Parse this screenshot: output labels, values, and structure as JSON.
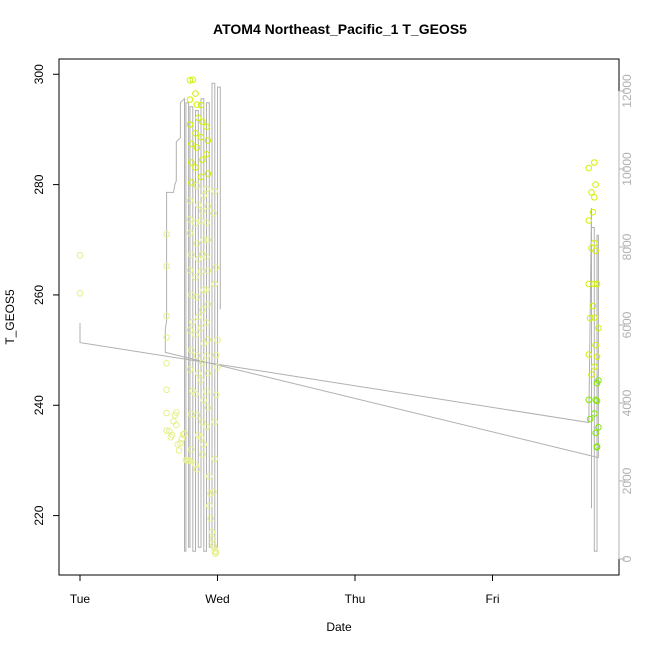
{
  "chart_data": {
    "type": "scatter",
    "title": "ATOM4 Northeast_Pacific_1 T_GEOS5",
    "xlabel": "Date",
    "ylabel": "T_GEOS5",
    "x_ticks": [
      "Tue",
      "Wed",
      "Thu",
      "Fri"
    ],
    "x_range_days": [
      0,
      3.85
    ],
    "ylim": [
      213,
      301
    ],
    "y_ticks": [
      220,
      240,
      260,
      280,
      300
    ],
    "y2lim": [
      -200,
      12500
    ],
    "y2_ticks": [
      0,
      2000,
      4000,
      6000,
      8000,
      10000,
      12000
    ],
    "grid": false,
    "point_color_light": "#e6f08a",
    "point_color_mid": "#d4f000",
    "point_color_green": "#7fe800",
    "line_color": "#b0b0b0",
    "series": [
      {
        "kind": "points",
        "points": [
          [
            0.0,
            267.2
          ],
          [
            0.0,
            260.3
          ],
          [
            0.63,
            271
          ],
          [
            0.63,
            265.2
          ],
          [
            0.63,
            256.2
          ],
          [
            0.63,
            252.3
          ],
          [
            0.63,
            247.6
          ],
          [
            0.63,
            242.8
          ],
          [
            0.63,
            238.6
          ],
          [
            0.63,
            235.4
          ],
          [
            0.65,
            235.3
          ],
          [
            0.66,
            234.2
          ],
          [
            0.67,
            234.6
          ],
          [
            0.68,
            237.1
          ],
          [
            0.69,
            238.2
          ],
          [
            0.7,
            238.7
          ],
          [
            0.7,
            236.4
          ],
          [
            0.71,
            232.9
          ],
          [
            0.72,
            231.8
          ],
          [
            0.73,
            233.1
          ],
          [
            0.74,
            233.9
          ],
          [
            0.75,
            234.7
          ],
          [
            0.76,
            234.9
          ],
          [
            0.77,
            230.1
          ],
          [
            0.78,
            230.0
          ],
          [
            0.79,
            230.0
          ],
          [
            0.8,
            229.9
          ],
          [
            0.8,
            298.9
          ],
          [
            0.82,
            299.0
          ],
          [
            0.8,
            295.4
          ],
          [
            0.8,
            290.9
          ],
          [
            0.81,
            287.4
          ],
          [
            0.81,
            284.0
          ],
          [
            0.81,
            280.4
          ],
          [
            0.8,
            277.1
          ],
          [
            0.8,
            273.7
          ],
          [
            0.8,
            271.2
          ],
          [
            0.81,
            267.3
          ],
          [
            0.8,
            264.5
          ],
          [
            0.81,
            260.0
          ],
          [
            0.82,
            255.1
          ],
          [
            0.8,
            253.6
          ],
          [
            0.81,
            250.0
          ],
          [
            0.8,
            246.5
          ],
          [
            0.82,
            242.6
          ],
          [
            0.81,
            238.4
          ],
          [
            0.81,
            232.0
          ],
          [
            0.84,
            296.5
          ],
          [
            0.85,
            294.5
          ],
          [
            0.86,
            292.1
          ],
          [
            0.84,
            289.3
          ],
          [
            0.85,
            286.7
          ],
          [
            0.84,
            283.1
          ],
          [
            0.85,
            279.8
          ],
          [
            0.86,
            276.3
          ],
          [
            0.84,
            273.0
          ],
          [
            0.85,
            269.3
          ],
          [
            0.86,
            266.5
          ],
          [
            0.84,
            263.2
          ],
          [
            0.85,
            259.6
          ],
          [
            0.86,
            256.0
          ],
          [
            0.84,
            252.8
          ],
          [
            0.85,
            249.0
          ],
          [
            0.86,
            245.8
          ],
          [
            0.84,
            242.1
          ],
          [
            0.85,
            238.2
          ],
          [
            0.86,
            234.6
          ],
          [
            0.84,
            229.2
          ],
          [
            0.85,
            228.4
          ],
          [
            0.88,
            294.4
          ],
          [
            0.89,
            291.4
          ],
          [
            0.88,
            288.6
          ],
          [
            0.89,
            284.5
          ],
          [
            0.88,
            281.4
          ],
          [
            0.9,
            278.0
          ],
          [
            0.89,
            275.2
          ],
          [
            0.88,
            273.5
          ],
          [
            0.9,
            270.0
          ],
          [
            0.89,
            267.4
          ],
          [
            0.88,
            264.3
          ],
          [
            0.9,
            260.9
          ],
          [
            0.89,
            257.3
          ],
          [
            0.88,
            254.0
          ],
          [
            0.9,
            251.2
          ],
          [
            0.89,
            247.7
          ],
          [
            0.88,
            244.6
          ],
          [
            0.9,
            240.9
          ],
          [
            0.89,
            237.0
          ],
          [
            0.88,
            234.1
          ],
          [
            0.9,
            232.9
          ],
          [
            0.89,
            231.1
          ],
          [
            0.92,
            290.5
          ],
          [
            0.93,
            288.0
          ],
          [
            0.92,
            285.5
          ],
          [
            0.93,
            282.0
          ],
          [
            0.92,
            279.2
          ],
          [
            0.93,
            276.1
          ],
          [
            0.92,
            273.1
          ],
          [
            0.93,
            270.0
          ],
          [
            0.92,
            266.9
          ],
          [
            0.93,
            264.4
          ],
          [
            0.92,
            261.0
          ],
          [
            0.93,
            258.3
          ],
          [
            0.92,
            255.0
          ],
          [
            0.93,
            251.9
          ],
          [
            0.92,
            249.0
          ],
          [
            0.93,
            245.8
          ],
          [
            0.92,
            242.5
          ],
          [
            0.93,
            239.6
          ],
          [
            0.92,
            236.1
          ],
          [
            0.94,
            227.1
          ],
          [
            0.95,
            224.0
          ],
          [
            0.94,
            221.8
          ],
          [
            0.95,
            219.5
          ],
          [
            0.96,
            217.0
          ],
          [
            0.965,
            215.8
          ],
          [
            0.97,
            214.6
          ],
          [
            0.975,
            214.2
          ],
          [
            0.98,
            213.5
          ],
          [
            0.985,
            213.1
          ],
          [
            0.99,
            213.4
          ],
          [
            0.97,
            224.3
          ],
          [
            0.98,
            230.3
          ],
          [
            0.98,
            237.0
          ],
          [
            0.99,
            241.9
          ],
          [
            1.0,
            246.9
          ],
          [
            0.99,
            249.1
          ],
          [
            1.0,
            251.8
          ],
          [
            0.98,
            262.0
          ],
          [
            0.99,
            265.0
          ],
          [
            0.97,
            274.8
          ],
          [
            0.98,
            278.8
          ],
          [
            3.7,
            283.0
          ],
          [
            3.72,
            278.6
          ],
          [
            3.7,
            273.5
          ],
          [
            3.72,
            268.5
          ],
          [
            3.7,
            262.0
          ],
          [
            3.71,
            255.8
          ],
          [
            3.7,
            249.2
          ],
          [
            3.72,
            245.6
          ],
          [
            3.7,
            241.0
          ],
          [
            3.71,
            237.5
          ],
          [
            3.74,
            284.0
          ],
          [
            3.75,
            280.0
          ],
          [
            3.74,
            277.7
          ],
          [
            3.73,
            275.0
          ],
          [
            3.74,
            269.4
          ],
          [
            3.75,
            268.0
          ],
          [
            3.74,
            262.0
          ],
          [
            3.73,
            258.0
          ],
          [
            3.74,
            255.9
          ],
          [
            3.75,
            250.9
          ],
          [
            3.74,
            247.0
          ],
          [
            3.76,
            244.0
          ],
          [
            3.75,
            241.0
          ],
          [
            3.74,
            238.5
          ],
          [
            3.75,
            235.0
          ],
          [
            3.76,
            232.5
          ],
          [
            3.76,
            262.0
          ],
          [
            3.77,
            254.0
          ],
          [
            3.76,
            248.8
          ],
          [
            3.77,
            244.5
          ],
          [
            3.76,
            240.8
          ],
          [
            3.77,
            236.0
          ],
          [
            3.76,
            232.4
          ]
        ]
      },
      {
        "kind": "line",
        "axis": "right",
        "points": [
          [
            0.0,
            6050
          ],
          [
            0.0,
            5550
          ],
          [
            3.7,
            3500
          ],
          [
            3.72,
            9000
          ],
          [
            3.72,
            1300
          ],
          [
            3.72,
            8500
          ],
          [
            3.74,
            8500
          ],
          [
            3.74,
            200
          ],
          [
            3.76,
            200
          ],
          [
            3.76,
            8300
          ],
          [
            3.77,
            8300
          ],
          [
            3.77,
            2600
          ],
          [
            0.62,
            5300
          ],
          [
            0.62,
            5900
          ],
          [
            0.63,
            6100
          ],
          [
            0.63,
            9400
          ],
          [
            0.68,
            9400
          ],
          [
            0.69,
            9600
          ],
          [
            0.7,
            9700
          ],
          [
            0.7,
            10700
          ],
          [
            0.73,
            10800
          ],
          [
            0.73,
            11700
          ],
          [
            0.76,
            11800
          ],
          [
            0.76,
            200
          ],
          [
            0.77,
            200
          ],
          [
            0.77,
            11700
          ],
          [
            0.79,
            11700
          ],
          [
            0.79,
            300
          ],
          [
            0.8,
            300
          ],
          [
            0.8,
            11600
          ],
          [
            0.82,
            11600
          ],
          [
            0.82,
            200
          ],
          [
            0.84,
            200
          ],
          [
            0.84,
            11500
          ],
          [
            0.86,
            11500
          ],
          [
            0.86,
            300
          ],
          [
            0.88,
            300
          ],
          [
            0.88,
            11800
          ],
          [
            0.9,
            11800
          ],
          [
            0.9,
            200
          ],
          [
            0.92,
            200
          ],
          [
            0.92,
            11700
          ],
          [
            0.94,
            11700
          ],
          [
            0.94,
            300
          ],
          [
            0.96,
            300
          ],
          [
            0.96,
            12200
          ],
          [
            0.98,
            12200
          ],
          [
            0.98,
            300
          ],
          [
            1.0,
            300
          ],
          [
            1.0,
            12100
          ],
          [
            1.02,
            12100
          ],
          [
            1.02,
            6400
          ]
        ]
      }
    ]
  }
}
